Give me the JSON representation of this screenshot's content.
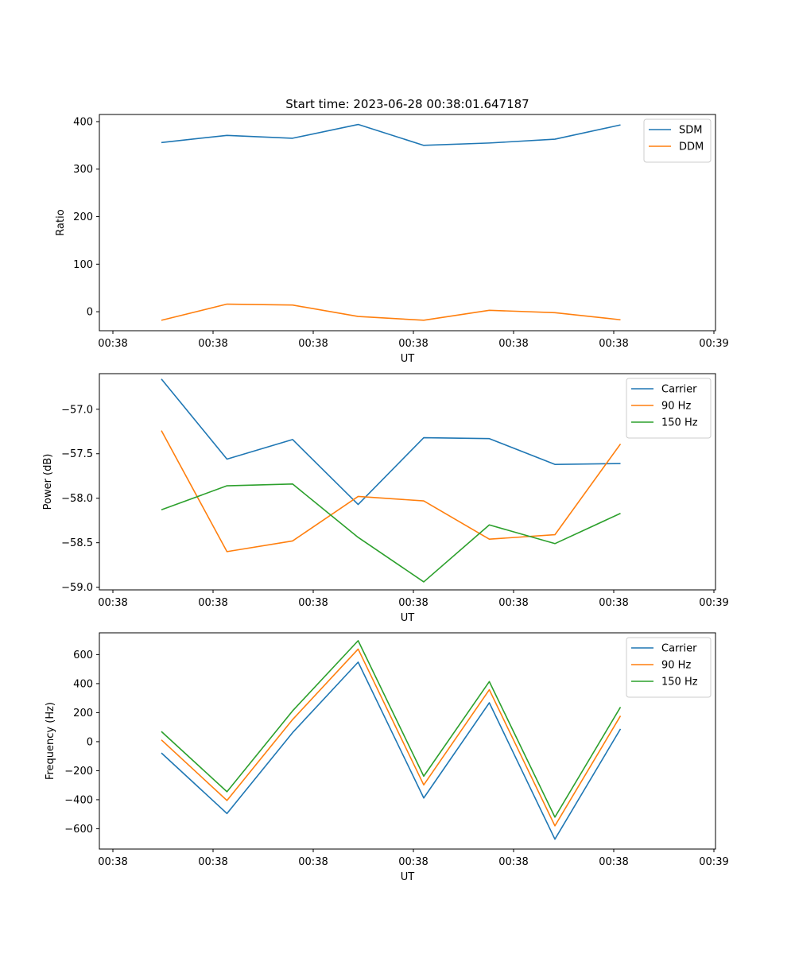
{
  "figure": {
    "title": "Start time: 2023-06-28 00:38:01.647187"
  },
  "chart_data": [
    {
      "type": "line",
      "xlabel": "UT",
      "ylabel": "Ratio",
      "x_tick_labels": [
        "00:38",
        "00:38",
        "00:38",
        "00:38",
        "00:38",
        "00:38",
        "00:39"
      ],
      "y_ticks": [
        0,
        100,
        200,
        300,
        400
      ],
      "y_tick_labels": [
        "0",
        "100",
        "200",
        "300",
        "400"
      ],
      "ylim": [
        -40,
        415
      ],
      "legend_position": "top-right",
      "series": [
        {
          "name": "SDM",
          "color": "#1f77b4",
          "values": [
            356,
            371,
            365,
            394,
            350,
            355,
            363,
            393
          ]
        },
        {
          "name": "DDM",
          "color": "#ff7f0e",
          "values": [
            -18,
            16,
            14,
            -10,
            -18,
            3,
            -2,
            -17
          ]
        }
      ]
    },
    {
      "type": "line",
      "xlabel": "UT",
      "ylabel": "Power (dB)",
      "x_tick_labels": [
        "00:38",
        "00:38",
        "00:38",
        "00:38",
        "00:38",
        "00:38",
        "00:39"
      ],
      "y_ticks": [
        -57.0,
        -57.5,
        -58.0,
        -58.5,
        -59.0
      ],
      "y_tick_labels": [
        "−57.0",
        "−57.5",
        "−58.0",
        "−58.5",
        "−59.0"
      ],
      "ylim": [
        -59.03,
        -56.6
      ],
      "legend_position": "top-right",
      "series": [
        {
          "name": "Carrier",
          "color": "#1f77b4",
          "values": [
            -56.66,
            -57.56,
            -57.34,
            -58.07,
            -57.32,
            -57.33,
            -57.62,
            -57.61
          ]
        },
        {
          "name": "90 Hz",
          "color": "#ff7f0e",
          "values": [
            -57.24,
            -58.6,
            -58.48,
            -57.98,
            -58.03,
            -58.46,
            -58.41,
            -57.39
          ]
        },
        {
          "name": "150 Hz",
          "color": "#2ca02c",
          "values": [
            -58.13,
            -57.86,
            -57.84,
            -58.44,
            -58.94,
            -58.3,
            -58.51,
            -58.17
          ]
        }
      ]
    },
    {
      "type": "line",
      "xlabel": "UT",
      "ylabel": "Frequency (Hz)",
      "x_tick_labels": [
        "00:38",
        "00:38",
        "00:38",
        "00:38",
        "00:38",
        "00:38",
        "00:39"
      ],
      "y_ticks": [
        600,
        400,
        200,
        0,
        -200,
        -400,
        -600
      ],
      "y_tick_labels": [
        "600",
        "400",
        "200",
        "0",
        "−200",
        "−400",
        "−600"
      ],
      "ylim": [
        -740,
        750
      ],
      "legend_position": "top-right",
      "series": [
        {
          "name": "Carrier",
          "color": "#1f77b4",
          "values": [
            -78,
            -495,
            62,
            548,
            -388,
            268,
            -672,
            88
          ]
        },
        {
          "name": "90 Hz",
          "color": "#ff7f0e",
          "values": [
            12,
            -405,
            152,
            638,
            -298,
            358,
            -580,
            178
          ]
        },
        {
          "name": "150 Hz",
          "color": "#2ca02c",
          "values": [
            70,
            -345,
            212,
            696,
            -238,
            414,
            -520,
            238
          ]
        }
      ]
    }
  ]
}
